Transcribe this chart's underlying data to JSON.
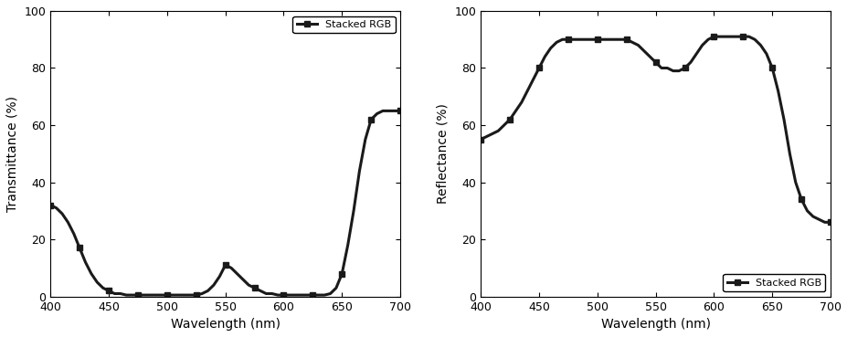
{
  "title": "",
  "background_color": "#ffffff",
  "xlim": [
    400,
    700
  ],
  "ylim": [
    0,
    100
  ],
  "xlabel": "Wavelength (nm)",
  "ylabel_left": "Transmittance (%)",
  "ylabel_right": "Reflectance (%)",
  "legend_label": "Stacked RGB",
  "line_color": "#1a1a1a",
  "line_width": 2.2,
  "marker": "s",
  "marker_size": 4,
  "xticks": [
    400,
    450,
    500,
    550,
    600,
    650,
    700
  ],
  "yticks": [
    0,
    20,
    40,
    60,
    80,
    100
  ],
  "transmittance": {
    "wavelengths": [
      400,
      405,
      410,
      415,
      420,
      425,
      430,
      435,
      440,
      445,
      450,
      455,
      460,
      465,
      470,
      475,
      480,
      485,
      490,
      495,
      500,
      505,
      510,
      515,
      520,
      525,
      530,
      535,
      540,
      545,
      550,
      555,
      560,
      565,
      570,
      575,
      580,
      585,
      590,
      595,
      600,
      605,
      610,
      615,
      620,
      625,
      630,
      635,
      640,
      645,
      650,
      655,
      660,
      665,
      670,
      675,
      680,
      685,
      690,
      695,
      700
    ],
    "values": [
      32,
      31,
      29,
      26,
      22,
      17,
      12,
      8,
      5,
      3,
      2,
      1,
      1,
      0.5,
      0.5,
      0.5,
      0.5,
      0.5,
      0.5,
      0.5,
      0.5,
      0.5,
      0.5,
      0.5,
      0.5,
      0.5,
      1,
      2,
      4,
      7,
      11,
      10,
      8,
      6,
      4,
      3,
      2,
      1,
      1,
      0.5,
      0.5,
      0.5,
      0.5,
      0.5,
      0.5,
      0.5,
      0.5,
      0.5,
      1,
      3,
      8,
      18,
      30,
      44,
      55,
      62,
      64,
      65,
      65,
      65,
      65
    ]
  },
  "reflectance": {
    "wavelengths": [
      400,
      405,
      410,
      415,
      420,
      425,
      430,
      435,
      440,
      445,
      450,
      455,
      460,
      465,
      470,
      475,
      480,
      485,
      490,
      495,
      500,
      505,
      510,
      515,
      520,
      525,
      530,
      535,
      540,
      545,
      550,
      555,
      560,
      565,
      570,
      575,
      580,
      585,
      590,
      595,
      600,
      605,
      610,
      615,
      620,
      625,
      630,
      635,
      640,
      645,
      650,
      655,
      660,
      665,
      670,
      675,
      680,
      685,
      690,
      695,
      700
    ],
    "values": [
      55,
      56,
      57,
      58,
      60,
      62,
      65,
      68,
      72,
      76,
      80,
      84,
      87,
      89,
      90,
      90,
      90,
      90,
      90,
      90,
      90,
      90,
      90,
      90,
      90,
      90,
      89,
      88,
      86,
      84,
      82,
      80,
      80,
      79,
      79,
      80,
      82,
      85,
      88,
      90,
      91,
      91,
      91,
      91,
      91,
      91,
      91,
      90,
      88,
      85,
      80,
      72,
      62,
      50,
      40,
      34,
      30,
      28,
      27,
      26,
      26
    ]
  }
}
